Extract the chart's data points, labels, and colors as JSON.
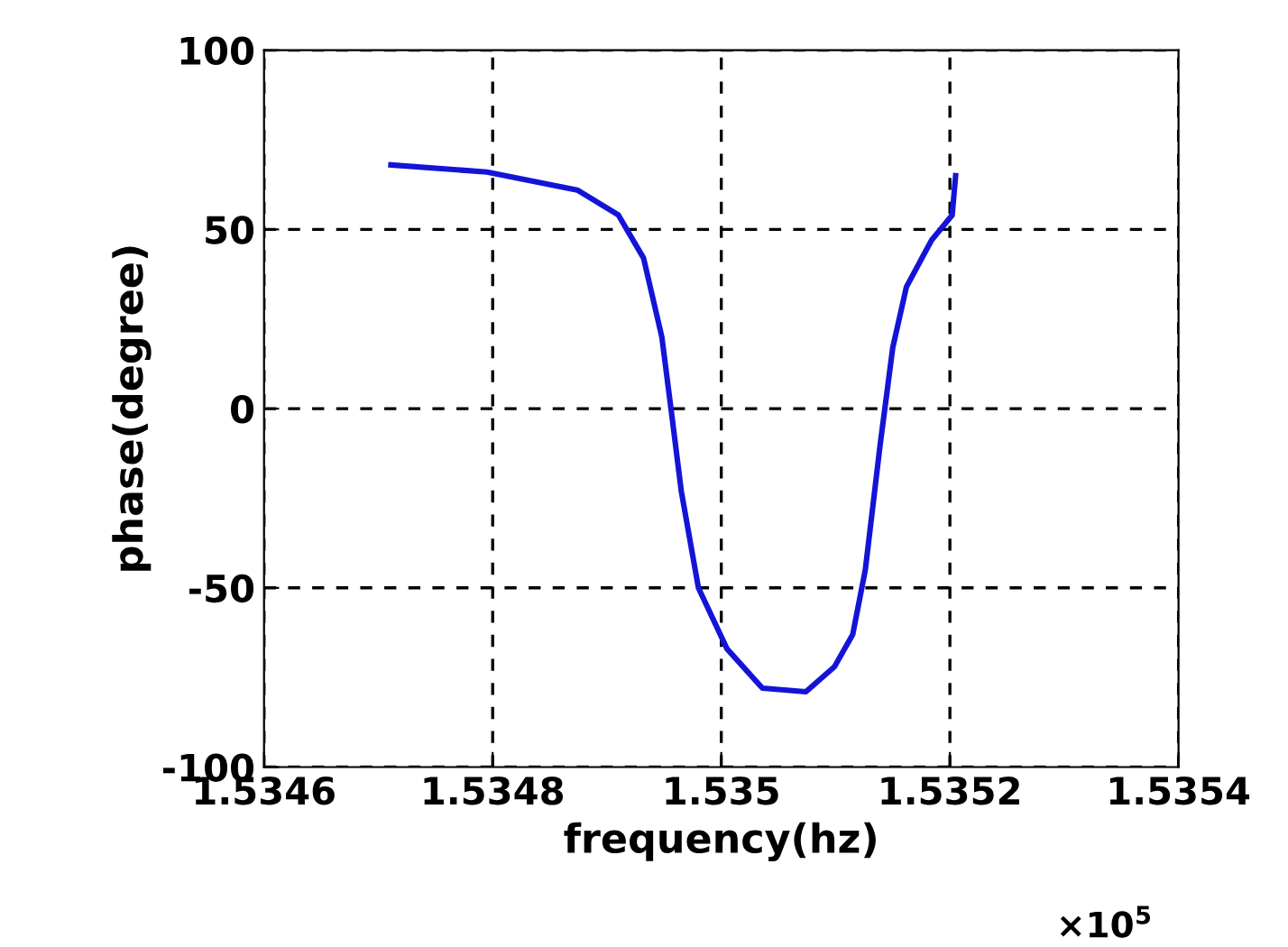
{
  "chart_data": {
    "type": "line",
    "xlabel": "frequency(hz)",
    "ylabel": "phase(degree)",
    "annotations": [
      "×10$^{5}$"
    ],
    "x": [
      1.534711,
      1.534795,
      1.534874,
      1.53491,
      1.534932,
      1.534948,
      1.534956,
      1.534965,
      1.53498,
      1.535005,
      1.535036,
      1.535074,
      1.535099,
      1.535115,
      1.535126,
      1.535139,
      1.53515,
      1.535162,
      1.535184,
      1.535202,
      1.535205
    ],
    "series": [
      {
        "color": "#1414d8",
        "values": [
          68,
          66,
          61,
          54,
          42,
          20,
          0,
          -23,
          -50,
          -67,
          -78,
          -79,
          -72,
          -63,
          -45,
          -10,
          17,
          34,
          47,
          54,
          65
        ]
      }
    ],
    "xlim": [
      1.5346,
      1.5354
    ],
    "xticks": [
      1.5346,
      1.5348,
      {
        "value": 1.535,
        "label": "1.535"
      },
      1.5352,
      1.5354
    ],
    "ylim": [
      -100,
      100
    ],
    "yticks": [
      -100,
      -50,
      0,
      50,
      100
    ],
    "grid": true,
    "line_style": "solid",
    "marker": "none"
  }
}
